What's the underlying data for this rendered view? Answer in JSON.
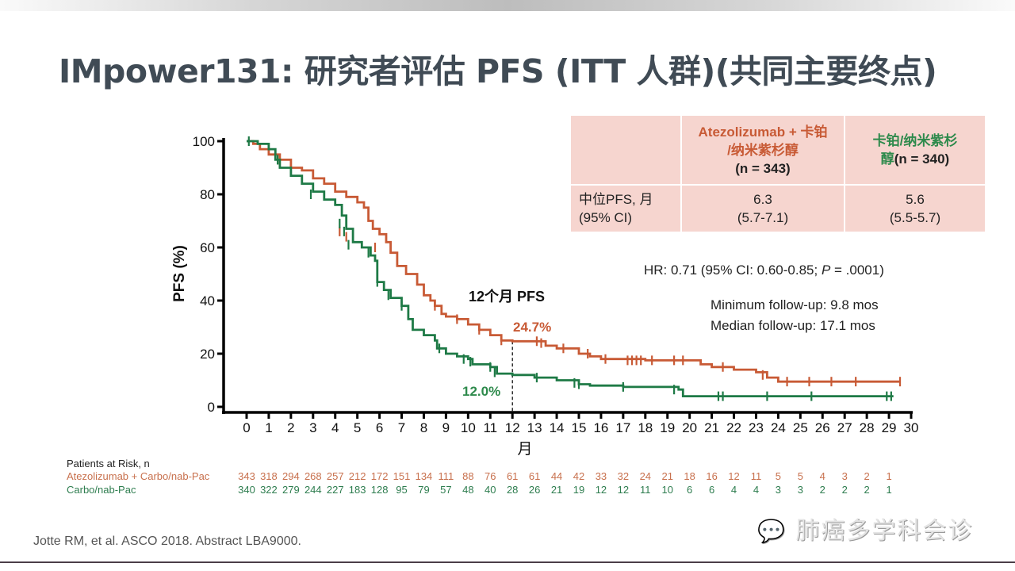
{
  "slide": {
    "title": "IMpower131: 研究者评估 PFS (ITT 人群)(共同主要终点)",
    "footnote": "Jotte RM, et al. ASCO 2018. Abstract LBA9000.",
    "watermark": "肺癌多学科会诊",
    "watermark_icon": "wechat-icon"
  },
  "summary_table": {
    "col1_header_line1": "Atezolizumab + 卡铂",
    "col1_header_line2": "/纳米紫杉醇",
    "col1_header_line3": "(n = 343)",
    "col2_header_line1": "卡铂/纳米紫杉",
    "col2_header_line2_cjk": "醇",
    "col2_header_line2_n": "(n = 340)",
    "row_label_line1": "中位PFS, 月",
    "row_label_line2": "(95% CI)",
    "col1_value": "6.3",
    "col1_ci": "(5.7-7.1)",
    "col2_value": "5.6",
    "col2_ci": "(5.5-5.7)"
  },
  "annotations": {
    "hr_prefix": "HR: 0.71 (95% CI: 0.60-0.85; ",
    "hr_p": "P",
    "hr_suffix": " = .0001)",
    "min_followup": "Minimum follow-up: 9.8 mos",
    "median_followup": "Median follow-up: 17.1 mos",
    "landmark_label": "12个月 PFS",
    "landmark_orange": "24.7%",
    "landmark_green": "12.0%"
  },
  "risk_table": {
    "title": "Patients at Risk, n",
    "rows": [
      {
        "label": "Atezolizumab + Carbo/nab-Pac",
        "values": [
          "343",
          "318",
          "294",
          "268",
          "257",
          "212",
          "172",
          "151",
          "134",
          "111",
          "88",
          "76",
          "61",
          "61",
          "44",
          "42",
          "33",
          "32",
          "24",
          "21",
          "18",
          "16",
          "12",
          "11",
          "5",
          "5",
          "4",
          "3",
          "2",
          "1"
        ]
      },
      {
        "label": "Carbo/nab-Pac",
        "values": [
          "340",
          "322",
          "279",
          "244",
          "227",
          "183",
          "128",
          "95",
          "79",
          "57",
          "48",
          "40",
          "28",
          "26",
          "21",
          "19",
          "12",
          "12",
          "11",
          "10",
          "6",
          "6",
          "4",
          "4",
          "3",
          "3",
          "2",
          "2",
          "2",
          "1"
        ]
      }
    ]
  },
  "colors": {
    "orange": "#c85a35",
    "green": "#1e7a46",
    "table_bg": "#f6d5cf",
    "title": "#404b55"
  },
  "chart_data": {
    "type": "line",
    "title": "",
    "xlabel": "月",
    "ylabel": "PFS (%)",
    "xlim": [
      0,
      30
    ],
    "ylim": [
      0,
      100
    ],
    "x_ticks": [
      0,
      1,
      2,
      3,
      4,
      5,
      6,
      7,
      8,
      9,
      10,
      11,
      12,
      13,
      14,
      15,
      16,
      17,
      18,
      19,
      20,
      21,
      22,
      23,
      24,
      25,
      26,
      27,
      28,
      29,
      30
    ],
    "y_ticks": [
      0,
      20,
      40,
      60,
      80,
      100
    ],
    "grid": false,
    "step": true,
    "landmark_x": 12,
    "series": [
      {
        "name": "Atezolizumab + Carbo/nab-Pac",
        "color": "#c85a35",
        "points": [
          [
            0,
            100
          ],
          [
            0.3,
            99
          ],
          [
            0.6,
            97
          ],
          [
            1,
            95
          ],
          [
            1.5,
            93
          ],
          [
            2,
            90
          ],
          [
            2.5,
            89
          ],
          [
            3,
            86
          ],
          [
            3.5,
            84
          ],
          [
            4,
            81
          ],
          [
            4.5,
            79
          ],
          [
            5,
            77
          ],
          [
            5.3,
            75
          ],
          [
            5.5,
            70
          ],
          [
            5.7,
            67
          ],
          [
            6,
            65
          ],
          [
            6.3,
            62
          ],
          [
            6.5,
            58
          ],
          [
            6.8,
            53
          ],
          [
            7.2,
            50
          ],
          [
            7.7,
            46
          ],
          [
            8,
            42
          ],
          [
            8.3,
            40
          ],
          [
            8.5,
            38
          ],
          [
            8.8,
            35
          ],
          [
            9,
            34
          ],
          [
            9.5,
            33
          ],
          [
            10,
            31
          ],
          [
            10.5,
            29
          ],
          [
            11,
            27
          ],
          [
            11.5,
            25
          ],
          [
            12,
            24.7
          ],
          [
            13,
            24.7
          ],
          [
            13.5,
            23
          ],
          [
            14,
            22
          ],
          [
            15,
            20
          ],
          [
            15.5,
            19
          ],
          [
            16,
            18
          ],
          [
            17,
            18
          ],
          [
            18,
            17.5
          ],
          [
            20,
            17.5
          ],
          [
            20.5,
            16
          ],
          [
            21,
            15
          ],
          [
            22,
            14
          ],
          [
            23,
            13
          ],
          [
            23.5,
            11
          ],
          [
            24,
            9.5
          ],
          [
            29.5,
            9.5
          ]
        ],
        "censors": [
          [
            1.4,
            93
          ],
          [
            4.2,
            66
          ],
          [
            4.5,
            64
          ],
          [
            5.8,
            60
          ],
          [
            8.5,
            38
          ],
          [
            9.5,
            33
          ],
          [
            10.5,
            29
          ],
          [
            11.5,
            25
          ],
          [
            13.1,
            24.7
          ],
          [
            13.3,
            24
          ],
          [
            14.3,
            22
          ],
          [
            15.4,
            20
          ],
          [
            16.2,
            18
          ],
          [
            17.2,
            17.5
          ],
          [
            17.4,
            17.5
          ],
          [
            17.6,
            17.5
          ],
          [
            17.8,
            17.5
          ],
          [
            18.3,
            17.5
          ],
          [
            19.3,
            17.5
          ],
          [
            19.7,
            17.5
          ],
          [
            21.5,
            15
          ],
          [
            23.3,
            12
          ],
          [
            24.4,
            9.5
          ],
          [
            25.4,
            9.5
          ],
          [
            26.4,
            9.5
          ],
          [
            27.5,
            9.5
          ],
          [
            29.5,
            9.5
          ]
        ]
      },
      {
        "name": "Carbo/nab-Pac",
        "color": "#1e7a46",
        "points": [
          [
            0,
            100
          ],
          [
            0.5,
            99
          ],
          [
            1,
            97
          ],
          [
            1.3,
            93
          ],
          [
            1.5,
            90
          ],
          [
            2,
            87
          ],
          [
            2.5,
            84
          ],
          [
            3,
            81
          ],
          [
            3.5,
            78
          ],
          [
            4,
            76
          ],
          [
            4.3,
            72
          ],
          [
            4.5,
            67
          ],
          [
            4.8,
            62
          ],
          [
            5.2,
            60
          ],
          [
            5.6,
            57
          ],
          [
            5.8,
            55
          ],
          [
            5.9,
            47
          ],
          [
            6.2,
            44
          ],
          [
            6.5,
            41
          ],
          [
            7,
            38
          ],
          [
            7.3,
            33
          ],
          [
            7.5,
            29
          ],
          [
            8,
            27
          ],
          [
            8.5,
            25
          ],
          [
            8.6,
            22
          ],
          [
            9,
            20
          ],
          [
            9.5,
            19
          ],
          [
            10,
            18
          ],
          [
            10.2,
            16
          ],
          [
            11,
            15
          ],
          [
            11.3,
            12.5
          ],
          [
            12,
            12
          ],
          [
            13,
            11
          ],
          [
            14,
            10
          ],
          [
            15,
            8.5
          ],
          [
            15.5,
            8
          ],
          [
            17,
            7.5
          ],
          [
            19.5,
            6.5
          ],
          [
            19.7,
            4
          ],
          [
            29.2,
            4
          ]
        ],
        "censors": [
          [
            0.1,
            100
          ],
          [
            1.4,
            93
          ],
          [
            2.9,
            80
          ],
          [
            4.2,
            69
          ],
          [
            4.4,
            66
          ],
          [
            4.6,
            61
          ],
          [
            5.5,
            58
          ],
          [
            5.9,
            47
          ],
          [
            6.4,
            42
          ],
          [
            7.0,
            38
          ],
          [
            8.7,
            22
          ],
          [
            9.8,
            18
          ],
          [
            10.1,
            17
          ],
          [
            11.0,
            15
          ],
          [
            11.2,
            13
          ],
          [
            13.1,
            11
          ],
          [
            14.8,
            9
          ],
          [
            15.0,
            8.5
          ],
          [
            17.0,
            7.5
          ],
          [
            19.3,
            6.5
          ],
          [
            21.3,
            4
          ],
          [
            21.5,
            4
          ],
          [
            23.5,
            4
          ],
          [
            25.5,
            4
          ],
          [
            28.9,
            4
          ],
          [
            29.1,
            4
          ]
        ]
      }
    ]
  }
}
